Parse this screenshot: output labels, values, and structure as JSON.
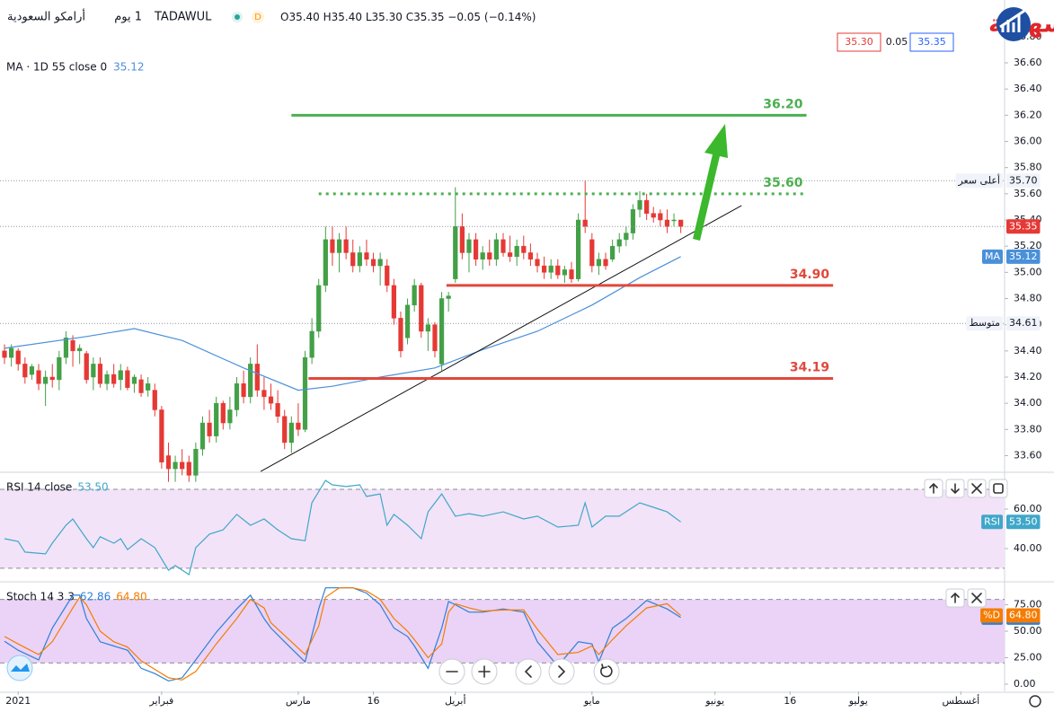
{
  "header": {
    "name": "أرامكو السعودية",
    "interval": "1 يوم",
    "symbol": "TADAWUL",
    "ohlc": [
      "O35.40",
      "H35.40",
      "L35.30",
      "C35.35",
      "−0.05 (−0.14%)"
    ],
    "bid": "35.30",
    "spread": "0.05",
    "ask": "35.35",
    "watermark": "التداول بسهولة"
  },
  "chart_data": [
    {
      "type": "candlestick",
      "legend": "MA · 1D 55 close 0",
      "up_color": "#43a047",
      "down_color": "#e53935",
      "ylim": [
        33.48,
        37.08
      ],
      "yticks": [
        {
          "value": 33.6,
          "label": "33.60"
        },
        {
          "value": 33.8,
          "label": "33.80"
        },
        {
          "value": 34,
          "label": "34.00"
        },
        {
          "value": 34.2,
          "label": "34.20"
        },
        {
          "value": 34.4,
          "label": "34.40"
        },
        {
          "value": 34.6,
          "label": "34.60"
        },
        {
          "value": 34.8,
          "label": "34.80"
        },
        {
          "value": 35,
          "label": "35.00"
        },
        {
          "value": 35.2,
          "label": "35.20"
        },
        {
          "value": 35.4,
          "label": "35.40"
        },
        {
          "value": 35.6,
          "label": "35.60"
        },
        {
          "value": 35.8,
          "label": "35.80"
        },
        {
          "value": 36,
          "label": "36.00"
        },
        {
          "value": 36.2,
          "label": "36.20"
        },
        {
          "value": 36.4,
          "label": "36.40"
        },
        {
          "value": 36.6,
          "label": "36.60"
        },
        {
          "value": 36.8,
          "label": "36.80"
        }
      ],
      "ohlc": [
        [
          34.4,
          34.45,
          34.3,
          34.35
        ],
        [
          34.35,
          34.45,
          34.28,
          34.42
        ],
        [
          34.4,
          34.42,
          34.25,
          34.3
        ],
        [
          34.3,
          34.35,
          34.15,
          34.2
        ],
        [
          34.22,
          34.3,
          34.18,
          34.28
        ],
        [
          34.25,
          34.3,
          34.1,
          34.15
        ],
        [
          34.15,
          34.25,
          33.98,
          34.2
        ],
        [
          34.2,
          34.3,
          34.12,
          34.18
        ],
        [
          34.18,
          34.4,
          34.1,
          34.35
        ],
        [
          34.35,
          34.55,
          34.3,
          34.5
        ],
        [
          34.48,
          34.52,
          34.28,
          34.4
        ],
        [
          34.4,
          34.45,
          34.3,
          34.42
        ],
        [
          34.38,
          34.4,
          34.15,
          34.18
        ],
        [
          34.2,
          34.35,
          34.1,
          34.3
        ],
        [
          34.3,
          34.35,
          34.12,
          34.15
        ],
        [
          34.15,
          34.25,
          34.1,
          34.22
        ],
        [
          34.22,
          34.3,
          34.12,
          34.15
        ],
        [
          34.18,
          34.3,
          34.1,
          34.25
        ],
        [
          34.25,
          34.28,
          34.1,
          34.12
        ],
        [
          34.15,
          34.22,
          34.08,
          34.2
        ],
        [
          34.18,
          34.22,
          34.05,
          34.08
        ],
        [
          34.1,
          34.2,
          34.05,
          34.15
        ],
        [
          34.1,
          34.15,
          33.9,
          33.95
        ],
        [
          33.95,
          33.98,
          33.5,
          33.55
        ],
        [
          33.6,
          33.7,
          33.4,
          33.5
        ],
        [
          33.5,
          33.6,
          33.4,
          33.55
        ],
        [
          33.55,
          33.65,
          33.45,
          33.5
        ],
        [
          33.55,
          33.6,
          33.4,
          33.45
        ],
        [
          33.45,
          33.7,
          33.4,
          33.65
        ],
        [
          33.65,
          33.9,
          33.6,
          33.85
        ],
        [
          33.85,
          33.95,
          33.7,
          33.75
        ],
        [
          33.75,
          34.05,
          33.7,
          34.0
        ],
        [
          34.0,
          34.02,
          33.8,
          33.85
        ],
        [
          33.85,
          34.05,
          33.8,
          33.95
        ],
        [
          33.95,
          34.2,
          33.9,
          34.15
        ],
        [
          34.15,
          34.25,
          34.0,
          34.05
        ],
        [
          34.05,
          34.35,
          34.0,
          34.3
        ],
        [
          34.3,
          34.45,
          34.05,
          34.1
        ],
        [
          34.1,
          34.2,
          33.95,
          34.05
        ],
        [
          34.05,
          34.15,
          33.95,
          34.0
        ],
        [
          34.0,
          34.1,
          33.85,
          33.9
        ],
        [
          33.9,
          33.95,
          33.65,
          33.7
        ],
        [
          33.7,
          33.9,
          33.62,
          33.85
        ],
        [
          33.85,
          34.0,
          33.75,
          33.8
        ],
        [
          33.8,
          34.4,
          33.78,
          34.35
        ],
        [
          34.35,
          34.65,
          34.3,
          34.55
        ],
        [
          34.55,
          34.95,
          34.5,
          34.9
        ],
        [
          34.9,
          35.35,
          34.85,
          35.25
        ],
        [
          35.25,
          35.35,
          35.05,
          35.15
        ],
        [
          35.15,
          35.3,
          35.0,
          35.25
        ],
        [
          35.25,
          35.35,
          35.1,
          35.15
        ],
        [
          35.15,
          35.25,
          35.0,
          35.05
        ],
        [
          35.05,
          35.2,
          35.0,
          35.15
        ],
        [
          35.15,
          35.25,
          35.05,
          35.1
        ],
        [
          35.1,
          35.15,
          35.0,
          35.05
        ],
        [
          35.05,
          35.15,
          34.9,
          35.1
        ],
        [
          35.05,
          35.1,
          34.85,
          34.9
        ],
        [
          34.9,
          34.95,
          34.6,
          34.65
        ],
        [
          34.65,
          34.7,
          34.35,
          34.4
        ],
        [
          34.5,
          34.8,
          34.45,
          34.75
        ],
        [
          34.75,
          34.95,
          34.7,
          34.9
        ],
        [
          34.9,
          34.92,
          34.5,
          34.55
        ],
        [
          34.55,
          34.65,
          34.4,
          34.6
        ],
        [
          34.6,
          34.62,
          34.35,
          34.4
        ],
        [
          34.3,
          34.85,
          34.25,
          34.8
        ],
        [
          34.8,
          34.85,
          34.7,
          34.82
        ],
        [
          34.95,
          35.65,
          34.92,
          35.35
        ],
        [
          35.35,
          35.45,
          35.1,
          35.15
        ],
        [
          35.15,
          35.3,
          35.0,
          35.25
        ],
        [
          35.25,
          35.3,
          35.05,
          35.1
        ],
        [
          35.1,
          35.2,
          35.02,
          35.15
        ],
        [
          35.15,
          35.25,
          35.05,
          35.1
        ],
        [
          35.1,
          35.3,
          35.05,
          35.25
        ],
        [
          35.25,
          35.3,
          35.12,
          35.15
        ],
        [
          35.15,
          35.28,
          35.08,
          35.12
        ],
        [
          35.12,
          35.25,
          35.05,
          35.2
        ],
        [
          35.2,
          35.28,
          35.1,
          35.15
        ],
        [
          35.15,
          35.22,
          35.05,
          35.1
        ],
        [
          35.1,
          35.15,
          35.0,
          35.05
        ],
        [
          35.05,
          35.12,
          34.95,
          35.0
        ],
        [
          35.0,
          35.1,
          34.95,
          35.05
        ],
        [
          35.05,
          35.1,
          34.95,
          34.98
        ],
        [
          34.98,
          35.05,
          34.92,
          35.02
        ],
        [
          35.02,
          35.08,
          34.92,
          34.95
        ],
        [
          34.95,
          35.45,
          34.93,
          35.4
        ],
        [
          35.4,
          35.7,
          35.3,
          35.35
        ],
        [
          35.25,
          35.3,
          35.0,
          35.05
        ],
        [
          35.05,
          35.15,
          34.98,
          35.1
        ],
        [
          35.1,
          35.15,
          35.02,
          35.05
        ],
        [
          35.1,
          35.25,
          35.08,
          35.2
        ],
        [
          35.2,
          35.3,
          35.15,
          35.25
        ],
        [
          35.25,
          35.35,
          35.2,
          35.3
        ],
        [
          35.3,
          35.52,
          35.25,
          35.48
        ],
        [
          35.48,
          35.62,
          35.42,
          35.55
        ],
        [
          35.55,
          35.6,
          35.4,
          35.45
        ],
        [
          35.45,
          35.5,
          35.38,
          35.42
        ],
        [
          35.45,
          35.48,
          35.35,
          35.4
        ],
        [
          35.4,
          35.48,
          35.3,
          35.35
        ],
        [
          35.4,
          35.45,
          35.35,
          35.4
        ],
        [
          35.4,
          35.4,
          35.3,
          35.35
        ]
      ],
      "series": [
        {
          "name": "MA",
          "color": "#4a90d9",
          "x": [
            0,
            12,
            19,
            26,
            35,
            43,
            48,
            55,
            63,
            70,
            78,
            86,
            93,
            99
          ],
          "values": [
            34.42,
            34.51,
            34.57,
            34.48,
            34.27,
            34.1,
            34.13,
            34.2,
            34.27,
            34.41,
            34.55,
            34.75,
            34.96,
            35.12
          ]
        }
      ],
      "trendline": {
        "color": "#111111",
        "x": [
          37.5,
          107.9
        ],
        "values": [
          33.48,
          35.51
        ]
      },
      "levels": [
        {
          "value": 36.2,
          "label": "36.20",
          "color": "#4caf50",
          "style": "solid",
          "from": 42,
          "to": 117.4
        },
        {
          "value": 35.6,
          "label": "35.60",
          "color": "#4caf50",
          "style": "dotted",
          "from": 46,
          "to": 117.4
        },
        {
          "value": 34.9,
          "label": "34.90",
          "color": "#e0483b",
          "style": "solid",
          "from": 64.7,
          "to": 121.3
        },
        {
          "value": 34.19,
          "label": "34.19",
          "color": "#e0483b",
          "style": "solid",
          "from": 44.5,
          "to": 121.3
        }
      ],
      "price_lines": [
        {
          "value": 35.7,
          "label": "35.70",
          "name": "أعلى سعر"
        },
        {
          "value": 34.61,
          "label": "34.61",
          "name": "متوسط"
        }
      ]
    },
    {
      "type": "line",
      "ylim": [
        23.6,
        78.2
      ],
      "yticks": [
        {
          "value": 40,
          "label": "40.00"
        },
        {
          "value": 60,
          "label": "60.00"
        }
      ],
      "bands": [
        30,
        70
      ],
      "band_color": "#f3e3f8",
      "series": [
        {
          "name": "RSI",
          "legend": "RSI 14 close",
          "legend_value": "53.50",
          "color": "#3fa7c9",
          "x": [
            0,
            2,
            3,
            6,
            7,
            9,
            10,
            12,
            13,
            14,
            16,
            17,
            18,
            20,
            22,
            24,
            25,
            27,
            28,
            30,
            32,
            34,
            36,
            38,
            40,
            42,
            44,
            45,
            47,
            48,
            50,
            52,
            53,
            55,
            56,
            57,
            59,
            61,
            62,
            64,
            66,
            68,
            70,
            73,
            76,
            78,
            81,
            84,
            85,
            86,
            88,
            90,
            93,
            95,
            97,
            99
          ],
          "values": [
            45,
            43.6,
            38.2,
            37.3,
            42.7,
            51.8,
            55,
            45,
            40.5,
            46,
            42.7,
            45,
            39.5,
            45,
            40.5,
            29,
            31.4,
            26.8,
            40.5,
            47.3,
            49.5,
            57.3,
            51.8,
            55,
            49.5,
            45,
            44,
            63.2,
            74.5,
            72.3,
            71.4,
            72.3,
            66.4,
            67.7,
            51.8,
            57.3,
            51.8,
            45,
            58.6,
            67.7,
            56.4,
            57.7,
            56.4,
            58.6,
            55,
            56.4,
            50.9,
            51.8,
            63.2,
            50.9,
            56.4,
            56.4,
            63.2,
            60.9,
            58.6,
            53.5
          ]
        }
      ]
    },
    {
      "type": "line",
      "legend": "Stoch 14 3 3",
      "ylim": [
        -6.8,
        95.8
      ],
      "yticks": [
        {
          "value": 0,
          "label": "0.00"
        },
        {
          "value": 25,
          "label": "25.00"
        },
        {
          "value": 50,
          "label": "50.00"
        },
        {
          "value": 75,
          "label": "75.00"
        }
      ],
      "bands": [
        20,
        80
      ],
      "band_color": "#ead3f6",
      "xlim": [
        -0.66,
        146.4
      ],
      "xticks": [
        {
          "value": 2,
          "label": "2021"
        },
        {
          "value": 23,
          "label": "فبراير"
        },
        {
          "value": 43,
          "label": "مارس"
        },
        {
          "value": 54,
          "label": "16"
        },
        {
          "value": 66,
          "label": "أبريل"
        },
        {
          "value": 86,
          "label": "مايو"
        },
        {
          "value": 104,
          "label": "يونيو"
        },
        {
          "value": 115,
          "label": "16"
        },
        {
          "value": 125,
          "label": "يوليو"
        },
        {
          "value": 140,
          "label": "أغسطس"
        }
      ],
      "series": [
        {
          "name": "%K",
          "legend_value": "62.86",
          "color": "#2d7fd8",
          "x": [
            0,
            2,
            5,
            7,
            10,
            11,
            12,
            14,
            16,
            18,
            20,
            22,
            24,
            26,
            28,
            31,
            34,
            36,
            38,
            39,
            41,
            44,
            46,
            47,
            49,
            51,
            53,
            55,
            57,
            59,
            60,
            62,
            64,
            65,
            66,
            68,
            70,
            73,
            76,
            78,
            81,
            84,
            86,
            87,
            89,
            91,
            94,
            97,
            99
          ],
          "values": [
            40.5,
            32,
            23,
            53,
            84,
            84,
            62,
            40,
            36,
            32,
            15,
            10,
            3,
            6,
            23,
            49,
            71,
            84,
            62,
            53,
            40,
            21,
            71,
            91,
            91,
            91,
            86,
            75,
            53,
            45,
            36,
            15,
            53,
            78,
            75,
            68,
            68,
            71,
            68,
            40,
            17,
            40,
            38,
            21,
            53,
            62,
            79,
            71,
            62.86
          ]
        },
        {
          "name": "%D",
          "legend_value": "64.80",
          "color": "#f57c00",
          "x": [
            0,
            2,
            5,
            7,
            10,
            11,
            12,
            14,
            16,
            18,
            20,
            22,
            24,
            26,
            28,
            31,
            34,
            36,
            38,
            39,
            41,
            44,
            46,
            47,
            49,
            51,
            53,
            55,
            57,
            59,
            60,
            62,
            64,
            65,
            66,
            68,
            70,
            73,
            76,
            78,
            81,
            84,
            86,
            87,
            89,
            91,
            94,
            97,
            99
          ],
          "values": [
            45,
            38,
            28,
            40,
            72,
            82,
            75,
            50,
            40,
            35,
            22,
            14,
            6,
            4,
            12,
            38,
            62,
            80,
            72,
            58,
            46,
            28,
            55,
            82,
            91,
            91,
            88,
            80,
            62,
            50,
            42,
            25,
            38,
            68,
            76,
            72,
            69,
            70,
            70,
            52,
            28,
            30,
            36,
            28,
            42,
            55,
            72,
            76,
            64.8
          ]
        }
      ]
    }
  ]
}
